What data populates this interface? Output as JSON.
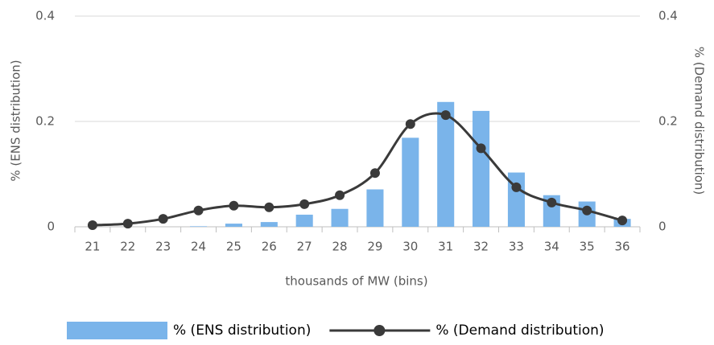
{
  "chart_data": {
    "type": "bar-line",
    "x_label": "thousands of MW (bins)",
    "y_label": "% (ENS distribution)",
    "y2_label": "% (Demand distribution)",
    "categories": [
      "21",
      "22",
      "23",
      "24",
      "25",
      "26",
      "27",
      "28",
      "29",
      "30",
      "31",
      "32",
      "33",
      "34",
      "35",
      "36"
    ],
    "series": [
      {
        "name": "% (ENS distribution)",
        "type": "bar",
        "color": "#7ab4ea",
        "values": [
          0,
          0,
          0,
          0.001,
          0.006,
          0.009,
          0.023,
          0.034,
          0.071,
          0.169,
          0.237,
          0.22,
          0.103,
          0.06,
          0.048,
          0.015
        ]
      },
      {
        "name": "% (Demand distribution)",
        "type": "line",
        "axis": "y2",
        "color": "#3a3a3a",
        "values": [
          0.003,
          0.006,
          0.015,
          0.031,
          0.04,
          0.037,
          0.043,
          0.06,
          0.102,
          0.195,
          0.212,
          0.149,
          0.075,
          0.046,
          0.031,
          0.012
        ]
      }
    ],
    "ylim": [
      0,
      0.4
    ],
    "yticks": [
      0,
      0.2,
      0.4
    ],
    "y2lim": [
      0,
      0.4
    ],
    "y2ticks": [
      0,
      0.2,
      0.4
    ],
    "grid": true,
    "legend": "bottom"
  }
}
